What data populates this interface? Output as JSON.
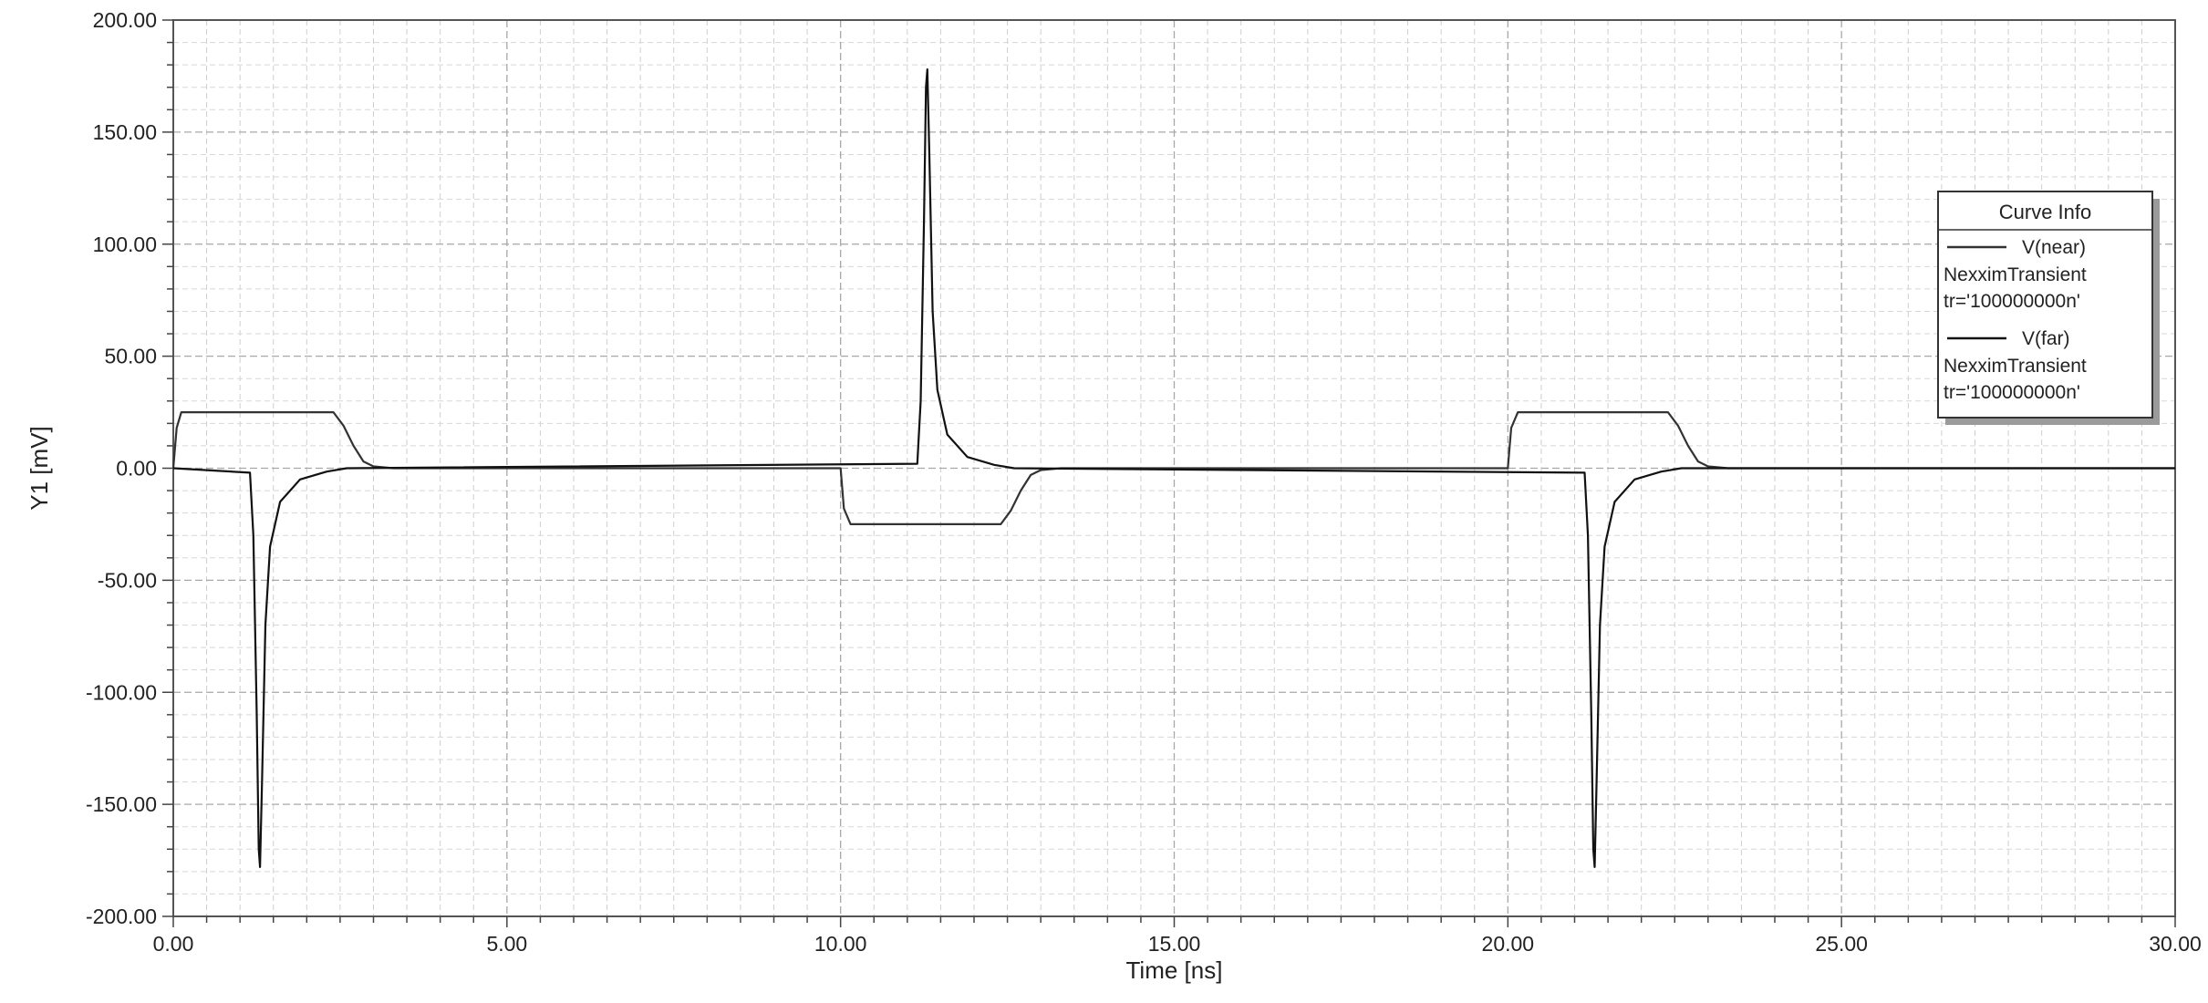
{
  "chart_data": {
    "type": "line",
    "title": "",
    "xlabel": "Time [ns]",
    "ylabel": "Y1 [mV]",
    "xlim": [
      0,
      30
    ],
    "ylim": [
      -200,
      200
    ],
    "x_ticks": [
      0,
      5,
      10,
      15,
      20,
      25,
      30
    ],
    "x_tick_labels": [
      "0.00",
      "5.00",
      "10.00",
      "15.00",
      "20.00",
      "25.00",
      "30.00"
    ],
    "y_ticks": [
      200,
      150,
      100,
      50,
      0,
      -50,
      -100,
      -150,
      -200
    ],
    "y_tick_labels": [
      "200.00",
      "150.00",
      "100.00",
      "50.00",
      "0.00",
      "-50.00",
      "-100.00",
      "-150.00",
      "-200.00"
    ],
    "grid": true,
    "legend": {
      "title": "Curve Info",
      "placement": "right",
      "entries": [
        {
          "name": "V(near)",
          "lines": [
            "NexximTransient",
            "tr='100000000n'"
          ]
        },
        {
          "name": "V(far)",
          "lines": [
            "NexximTransient",
            "tr='100000000n'"
          ]
        }
      ]
    },
    "series": [
      {
        "name": "V(near)",
        "color": "#333333",
        "x": [
          0,
          0.05,
          0.12,
          2.4,
          2.55,
          2.7,
          2.85,
          3.0,
          3.3,
          10.0,
          10.05,
          10.15,
          12.4,
          12.55,
          12.7,
          12.85,
          13.0,
          13.3,
          20.0,
          20.05,
          20.15,
          22.4,
          22.55,
          22.7,
          22.85,
          23.0,
          23.3,
          30.0
        ],
        "y": [
          0,
          18,
          25,
          25,
          19,
          10,
          3,
          0.8,
          0,
          0,
          -18,
          -25,
          -25,
          -19,
          -10,
          -3,
          -0.8,
          0,
          0,
          18,
          25,
          25,
          19,
          10,
          3,
          0.8,
          0,
          0
        ]
      },
      {
        "name": "V(far)",
        "color": "#111111",
        "x": [
          0,
          1.15,
          1.2,
          1.25,
          1.28,
          1.3,
          1.33,
          1.38,
          1.45,
          1.6,
          1.9,
          2.3,
          2.6,
          11.15,
          11.2,
          11.25,
          11.28,
          11.3,
          11.33,
          11.38,
          11.45,
          11.6,
          11.9,
          12.3,
          12.6,
          21.15,
          21.2,
          21.25,
          21.28,
          21.3,
          21.33,
          21.38,
          21.45,
          21.6,
          21.9,
          22.3,
          22.6,
          30.0
        ],
        "y": [
          0,
          -2,
          -30,
          -110,
          -170,
          -178,
          -140,
          -70,
          -35,
          -15,
          -5,
          -1.5,
          0,
          2,
          30,
          110,
          170,
          178,
          140,
          70,
          35,
          15,
          5,
          1.5,
          0,
          -2,
          -30,
          -110,
          -170,
          -178,
          -140,
          -70,
          -35,
          -15,
          -5,
          -1.5,
          0,
          0
        ]
      }
    ]
  }
}
